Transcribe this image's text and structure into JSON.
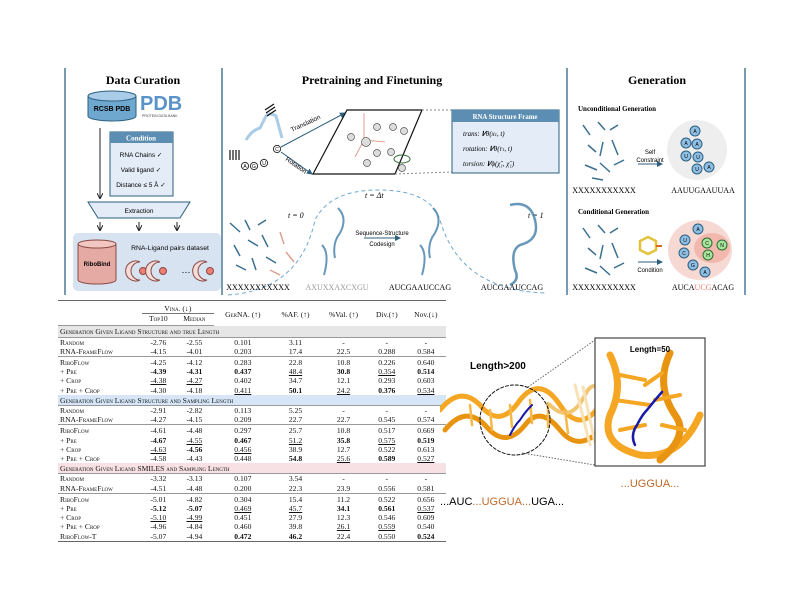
{
  "pipeline": {
    "data_curation": {
      "title": "Data Curation",
      "db_label": "RCSB PDB",
      "pdb_logo": "PDB",
      "pdb_logo_sub": "PROTEIN DATA BANK",
      "condition_title": "Condition",
      "conditions": [
        "RNA Chains ✓",
        "Valid ligand ✓",
        "Distance ≤ 5 Å ✓"
      ],
      "extraction": "Extraction",
      "dataset_label": "RNA-Ligand pairs dataset",
      "dataset_name": "RiboBind",
      "ellipsis": "…"
    },
    "pretraining": {
      "title": "Pretraining and Finetuning",
      "translation": "Translation",
      "rotation": "Rotation",
      "bases": [
        "A",
        "G",
        "U",
        "C"
      ],
      "frame_title": "RNA Structure Frame",
      "frame_rows": [
        "trans: 𝑽θ(xₜ, t)",
        "rotation: 𝑽θ(rₜ, t)",
        "torsion: 𝑽ϕ(χ̂₁, χ̂₁)"
      ],
      "t0": "t = 0",
      "tdt": "t = Δt",
      "t1": "t = 1",
      "codesign": [
        "Sequence-Structure",
        "Codesign"
      ],
      "sequences": [
        "XXXXXXXXXXX",
        "AXUXXAXCXGU",
        "AUCGAAUCCAG",
        "AUCGAAUCCAG"
      ]
    },
    "generation": {
      "title": "Generation",
      "unconditional_title": "Unconditional Generation",
      "self_constraint": [
        "Self",
        "Constraint"
      ],
      "uncond_input": "XXXXXXXXXXX",
      "uncond_output": "AAUUGAAUUAA",
      "uncond_nodes": [
        "A",
        "A",
        "A",
        "U",
        "U",
        "U",
        "A"
      ],
      "conditional_title": "Conditional Generation",
      "condition_label": "Condition",
      "cond_input": "XXXXXXXXXXX",
      "cond_output_parts": [
        "AUCA",
        "UCG",
        "ACAG"
      ],
      "cond_nodes": [
        "A",
        "U",
        "C",
        "G",
        "A"
      ],
      "ligand_nodes": [
        "C",
        "N",
        "H"
      ],
      "highlight_color": "#e07a6a"
    }
  },
  "table": {
    "columns": [
      "",
      "Top10",
      "Median",
      "GerNA. (↑)",
      "%AF. (↑)",
      "%Val. (↑)",
      "Div.(↑)",
      "Nov.(↓)"
    ],
    "vina_header": "Vina. (↓)",
    "sections": [
      {
        "title": "Generation Given Ligand Structure and true Length",
        "color": "#e6e6e6",
        "baselines": [
          {
            "name": "Random",
            "values": [
              "-2.76",
              "-2.55",
              "0.101",
              "3.11",
              "-",
              "-",
              "-"
            ],
            "bold": [],
            "underline": []
          },
          {
            "name": "RNA-FrameFlow",
            "values": [
              "-4.15",
              "-4.01",
              "0.203",
              "17.4",
              "22.5",
              "0.288",
              "0.584"
            ],
            "bold": [],
            "underline": []
          }
        ],
        "methods": [
          {
            "name": "RiboFlow",
            "values": [
              "-4.25",
              "-4.12",
              "0.283",
              "22.8",
              "10.8",
              "0.226",
              "0.640"
            ],
            "bold": [],
            "underline": []
          },
          {
            "name": "+ Pre",
            "values": [
              "-4.39",
              "-4.31",
              "0.437",
              "48.4",
              "30.8",
              "0.354",
              "0.514"
            ],
            "bold": [
              0,
              1,
              2,
              4,
              6
            ],
            "underline": [
              3,
              5
            ]
          },
          {
            "name": "+ Crop",
            "values": [
              "-4.38",
              "-4.27",
              "0.402",
              "34.7",
              "12.1",
              "0.293",
              "0.603"
            ],
            "bold": [],
            "underline": [
              0,
              1
            ]
          },
          {
            "name": "+ Pre + Crop",
            "values": [
              "-4.30",
              "-4.18",
              "0.411",
              "50.1",
              "24.2",
              "0.376",
              "0.534"
            ],
            "bold": [
              3,
              5
            ],
            "underline": [
              2,
              4,
              6
            ]
          }
        ]
      },
      {
        "title": "Generation Given Ligand Structure and Sampling Length",
        "color": "#d6e6f7",
        "baselines": [
          {
            "name": "Random",
            "values": [
              "-2.91",
              "-2.82",
              "0.113",
              "5.25",
              "-",
              "-",
              "-"
            ],
            "bold": [],
            "underline": []
          },
          {
            "name": "RNA-FrameFlow",
            "values": [
              "-4.27",
              "-4.15",
              "0.209",
              "22.7",
              "22.7",
              "0.545",
              "0.574"
            ],
            "bold": [],
            "underline": []
          }
        ],
        "methods": [
          {
            "name": "RiboFlow",
            "values": [
              "-4.61",
              "-4.48",
              "0.297",
              "25.7",
              "10.8",
              "0.517",
              "0.669"
            ],
            "bold": [],
            "underline": []
          },
          {
            "name": "+ Pre",
            "values": [
              "-4.67",
              "-4.55",
              "0.467",
              "51.2",
              "35.8",
              "0.575",
              "0.519"
            ],
            "bold": [
              0,
              2,
              4,
              6
            ],
            "underline": [
              1,
              3,
              5
            ]
          },
          {
            "name": "+ Crop",
            "values": [
              "-4.63",
              "-4.56",
              "0.456",
              "38.9",
              "12.7",
              "0.522",
              "0.613"
            ],
            "bold": [
              1
            ],
            "underline": [
              0,
              2
            ]
          },
          {
            "name": "+ Pre + Crop",
            "values": [
              "-4.58",
              "-4.43",
              "0.448",
              "54.8",
              "25.6",
              "0.589",
              "0.527"
            ],
            "bold": [
              3,
              5
            ],
            "underline": [
              4,
              6
            ]
          }
        ]
      },
      {
        "title": "Generation Given Ligand SMILES and Sampling Length",
        "color": "#f8e1e4",
        "baselines": [
          {
            "name": "Random",
            "values": [
              "-3.32",
              "-3.13",
              "0.107",
              "3.54",
              "-",
              "-",
              "-"
            ],
            "bold": [],
            "underline": []
          },
          {
            "name": "RNA-FrameFlow",
            "values": [
              "-4.51",
              "-4.48",
              "0.200",
              "22.3",
              "23.9",
              "0.556",
              "0.581"
            ],
            "bold": [],
            "underline": []
          }
        ],
        "methods": [
          {
            "name": "RiboFlow",
            "values": [
              "-5.01",
              "-4.82",
              "0.304",
              "15.4",
              "11.2",
              "0.522",
              "0.656"
            ],
            "bold": [],
            "underline": []
          },
          {
            "name": "+ Pre",
            "values": [
              "-5.12",
              "-5.07",
              "0.469",
              "45.7",
              "34.1",
              "0.561",
              "0.537"
            ],
            "bold": [
              0,
              1,
              4,
              5
            ],
            "underline": [
              2,
              3,
              6
            ]
          },
          {
            "name": "+ Crop",
            "values": [
              "-5.10",
              "-4.99",
              "0.451",
              "27.9",
              "12.3",
              "0.546",
              "0.609"
            ],
            "bold": [],
            "underline": [
              0,
              1
            ]
          },
          {
            "name": "+ Pre + Crop",
            "values": [
              "-4.96",
              "-4.84",
              "0.460",
              "39.8",
              "26.1",
              "0.559",
              "0.540"
            ],
            "bold": [],
            "underline": [
              4,
              5
            ]
          },
          {
            "name": "RiboFlow-T",
            "values": [
              "-5.07",
              "-4.94",
              "0.472",
              "46.2",
              "22.4",
              "0.550",
              "0.524"
            ],
            "bold": [
              2,
              3,
              6
            ],
            "underline": []
          }
        ]
      }
    ]
  },
  "structure_view": {
    "full_label": "Length>200",
    "inset_label": "Length=50",
    "inset_sequence": "...UGGUA...",
    "full_sequence_parts": [
      "...AUC",
      "...UGGUA...",
      "UGA..."
    ],
    "rna_color": "#f5a623",
    "ligand_color": "#1a1aa8",
    "motif_color": "#c0692a"
  }
}
